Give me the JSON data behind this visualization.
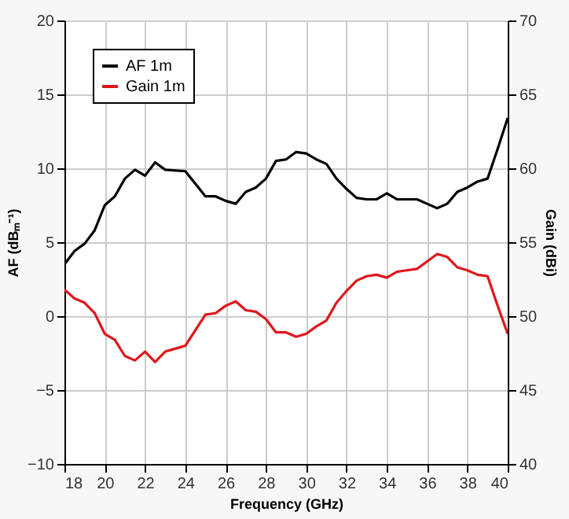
{
  "chart_data": {
    "type": "line",
    "xlabel": "Frequency (GHz)",
    "ylabel": "AF (dBₘ⁻¹)",
    "y2label": "Gain (dBi)",
    "x": [
      18,
      18.5,
      19,
      19.5,
      20,
      20.5,
      21,
      21.5,
      22,
      22.5,
      23,
      24,
      25,
      25.5,
      26,
      26.5,
      27,
      27.5,
      28,
      28.5,
      29,
      29.5,
      30,
      30.5,
      31,
      31.5,
      32,
      32.5,
      33,
      33.5,
      34,
      34.5,
      35,
      35.5,
      36,
      36.5,
      37,
      37.5,
      38,
      38.5,
      39,
      39.5,
      40
    ],
    "series": [
      {
        "name": "AF 1m",
        "color": "#000000",
        "values": [
          3.5,
          4.4,
          4.9,
          5.8,
          7.5,
          8.1,
          9.3,
          9.9,
          9.5,
          10.4,
          9.9,
          9.8,
          8.1,
          8.1,
          7.8,
          7.6,
          8.4,
          8.7,
          9.3,
          10.5,
          10.6,
          11.1,
          11.0,
          10.6,
          10.3,
          9.3,
          8.6,
          8.0,
          7.9,
          7.9,
          8.3,
          7.9,
          7.9,
          7.9,
          7.6,
          7.3,
          7.6,
          8.4,
          8.7,
          9.1,
          9.3,
          11.3,
          13.4
        ]
      },
      {
        "name": "Gain 1m",
        "color": "#e0161b",
        "axis": "y2",
        "values": [
          51.8,
          51.2,
          50.9,
          50.2,
          48.8,
          48.4,
          47.3,
          47.0,
          47.6,
          46.9,
          47.6,
          48.0,
          50.1,
          50.2,
          50.7,
          51.0,
          50.4,
          50.3,
          49.8,
          48.9,
          48.9,
          48.6,
          48.8,
          49.3,
          49.7,
          50.9,
          51.7,
          52.4,
          52.7,
          52.8,
          52.6,
          53.0,
          53.1,
          53.2,
          53.7,
          54.2,
          54.0,
          53.3,
          53.1,
          52.8,
          52.7,
          50.7,
          48.8
        ]
      }
    ],
    "xlim": [
      18,
      40
    ],
    "xticks": [
      18,
      20,
      22,
      24,
      26,
      28,
      30,
      32,
      34,
      36,
      38,
      40
    ],
    "ylim": [
      -10,
      20
    ],
    "yticks": [
      -10,
      -5,
      0,
      5,
      10,
      15,
      20
    ],
    "y2lim": [
      40,
      70
    ],
    "y2ticks": [
      40,
      45,
      50,
      55,
      60,
      65,
      70
    ],
    "grid": true,
    "legend": "top left"
  }
}
